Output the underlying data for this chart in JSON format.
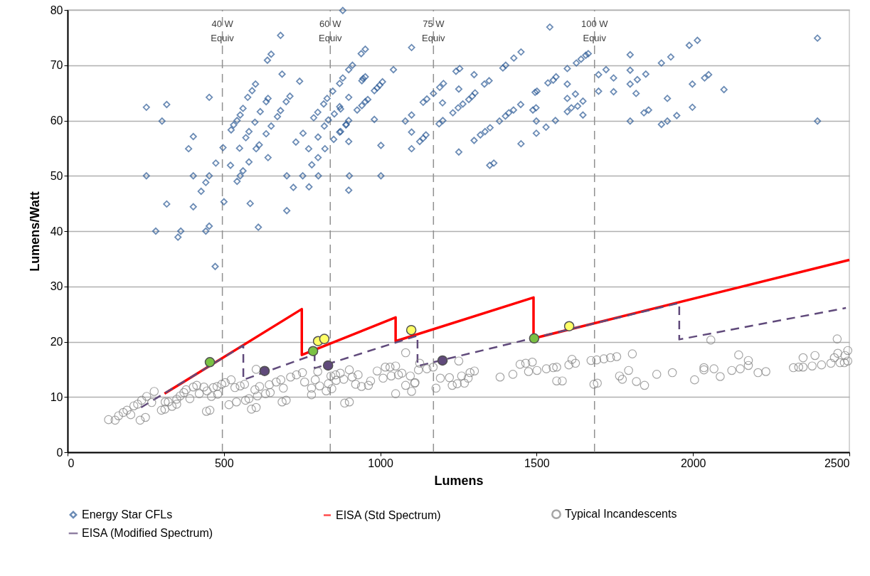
{
  "chart_data": {
    "type": "scatter",
    "xlabel": "Lumens",
    "ylabel": "Lumens/Watt",
    "xlim": [
      0,
      2500
    ],
    "xticks": [
      0,
      500,
      1000,
      1500,
      2000,
      2500
    ],
    "ylim": [
      0,
      80
    ],
    "yticks": [
      0,
      10,
      20,
      30,
      40,
      50,
      60,
      70,
      80
    ],
    "grid": "y",
    "legend": "bottom",
    "ref_lines": [
      {
        "axis": "x",
        "value": 495,
        "label": "40 W Equiv",
        "color": "#909090",
        "line_style": "dashed"
      },
      {
        "axis": "x",
        "value": 840,
        "label": "60 W Equiv",
        "color": "#909090",
        "line_style": "dashed"
      },
      {
        "axis": "x",
        "value": 1170,
        "label": "75 W Equiv",
        "color": "#909090",
        "line_style": "dashed"
      },
      {
        "axis": "x",
        "value": 1685,
        "label": "100 W Equiv",
        "color": "#909090",
        "line_style": "dashed"
      }
    ],
    "series": [
      {
        "name": "Energy Star CFLs",
        "marker": "diamond",
        "color": "#2e5c97",
        "x": [
          252,
          317,
          302,
          252,
          402,
          387,
          317,
          402,
          282,
          353,
          362,
          442,
          453,
          472,
          427,
          442,
          453,
          402,
          453,
          474,
          497,
          500,
          523,
          531,
          542,
          552,
          561,
          521,
          550,
          570,
          580,
          599,
          616,
          552,
          561,
          580,
          603,
          613,
          635,
          651,
          671,
          681,
          542,
          584,
          610,
          576,
          590,
          601,
          635,
          641,
          641,
          686,
          681,
          639,
          651,
          711,
          699,
          742,
          701,
          722,
          701,
          730,
          753,
          752,
          772,
          802,
          781,
          801,
          801,
          771,
          823,
          787,
          800,
          819,
          830,
          848,
          821,
          834,
          853,
          870,
          851,
          870,
          899,
          880,
          870,
          899,
          891,
          899,
          901,
          899,
          880,
          899,
          890,
          873,
          873,
          911,
          941,
          945,
          952,
          939,
          952,
          926,
          941,
          952,
          960,
          981,
          990,
          998,
          1007,
          981,
          1002,
          1002,
          1042,
          1100,
          1080,
          1100,
          1100,
          1100,
          1126,
          1137,
          1146,
          1137,
          1149,
          1170,
          1188,
          1200,
          1190,
          1202,
          1199,
          1232,
          1249,
          1264,
          1283,
          1294,
          1303,
          1251,
          1251,
          1242,
          1254,
          1300,
          1333,
          1348,
          1300,
          1320,
          1335,
          1351,
          1381,
          1400,
          1411,
          1426,
          1449,
          1350,
          1363,
          1392,
          1401,
          1427,
          1450,
          1450,
          1488,
          1498,
          1495,
          1501,
          1499,
          1499,
          1530,
          1560,
          1536,
          1553,
          1562,
          1542,
          1598,
          1598,
          1598,
          1598,
          1624,
          1611,
          1631,
          1648,
          1648,
          1627,
          1642,
          1657,
          1665,
          1698,
          1698,
          1722,
          1746,
          1746,
          1799,
          1799,
          1799,
          1818,
          1799,
          1822,
          1849,
          1843,
          1858,
          1899,
          1929,
          1918,
          1899,
          1918,
          1948,
          1988,
          2014,
          1998,
          1998,
          2037,
          2050,
          2099,
          2398,
          2398
        ],
        "values": [
          62.4,
          62.9,
          59.9,
          50.0,
          57.1,
          54.9,
          44.9,
          44.4,
          40.0,
          38.9,
          40.0,
          40.0,
          40.9,
          33.6,
          47.2,
          48.8,
          50.0,
          50.0,
          64.2,
          52.3,
          55.1,
          45.3,
          58.3,
          59.2,
          60.0,
          61.0,
          62.2,
          51.9,
          55.0,
          56.9,
          58.0,
          59.7,
          61.6,
          50.0,
          50.9,
          52.5,
          54.9,
          55.6,
          57.6,
          59.0,
          60.7,
          61.8,
          49.0,
          45.0,
          40.7,
          64.2,
          65.4,
          66.6,
          63.4,
          64.0,
          53.3,
          68.4,
          75.4,
          70.9,
          72.0,
          64.4,
          63.4,
          67.1,
          50.0,
          47.9,
          43.7,
          56.1,
          57.7,
          50.0,
          48.0,
          50.0,
          52.0,
          53.3,
          57.0,
          54.9,
          54.9,
          60.5,
          61.5,
          63.0,
          64.0,
          65.3,
          59.0,
          60.1,
          61.2,
          62.5,
          56.6,
          57.9,
          69.2,
          67.7,
          66.7,
          64.2,
          59.3,
          56.2,
          50.0,
          47.4,
          79.9,
          60.0,
          59.2,
          62.1,
          58.0,
          70.0,
          67.2,
          67.6,
          67.9,
          72.1,
          72.9,
          61.9,
          62.7,
          63.4,
          63.8,
          65.4,
          65.9,
          66.4,
          67.0,
          60.2,
          55.5,
          50.0,
          69.2,
          73.2,
          59.9,
          61.0,
          57.9,
          54.9,
          56.2,
          56.8,
          57.4,
          63.3,
          63.9,
          64.9,
          59.4,
          60.0,
          66.0,
          66.7,
          63.2,
          61.4,
          62.3,
          63.0,
          63.8,
          64.4,
          65.0,
          65.7,
          54.3,
          68.9,
          69.4,
          68.3,
          66.6,
          67.2,
          56.4,
          57.4,
          58.0,
          58.7,
          59.9,
          60.8,
          61.4,
          61.9,
          62.9,
          51.9,
          52.3,
          69.5,
          70.0,
          71.3,
          72.4,
          55.8,
          61.9,
          62.3,
          65.1,
          65.3,
          59.9,
          57.7,
          58.8,
          60.0,
          66.8,
          67.3,
          67.9,
          76.9,
          69.4,
          66.6,
          64.0,
          61.6,
          64.8,
          62.3,
          62.6,
          63.5,
          61.0,
          70.4,
          71.1,
          71.8,
          72.1,
          68.3,
          65.3,
          69.2,
          67.7,
          65.2,
          71.9,
          69.1,
          66.6,
          64.9,
          59.9,
          67.4,
          68.4,
          61.4,
          61.9,
          70.4,
          71.5,
          64.0,
          59.3,
          59.9,
          60.9,
          73.6,
          74.5,
          66.6,
          62.4,
          67.7,
          68.3,
          65.6,
          74.9,
          59.9
        ]
      },
      {
        "marker": "circle",
        "color": "#ffff66",
        "x": [
          801,
          821,
          1099,
          1604
        ],
        "values": [
          20.1,
          20.5,
          22.1,
          22.8
        ]
      },
      {
        "marker": "circle",
        "color": "#7ac143",
        "x": [
          455,
          785,
          1492
        ],
        "values": [
          16.3,
          18.3,
          20.6
        ]
      },
      {
        "name": "EISA (Std Spectrum)",
        "type": "line",
        "marker": "none",
        "line_style": "solid",
        "color": "#ff0000",
        "x": [
          310,
          749,
          749,
          1049,
          1049,
          1490,
          1490,
          2500
        ],
        "values": [
          10.6,
          25.9,
          17.6,
          24.4,
          20.1,
          28.0,
          20.6,
          34.8
        ]
      },
      {
        "name": "Typical Incandescents",
        "marker": "circle",
        "color": "#808080",
        "x": [
          131,
          152,
          163,
          178,
          190,
          202,
          212,
          224,
          237,
          253,
          277,
          232,
          249,
          269,
          300,
          311,
          312,
          322,
          334,
          349,
          349,
          360,
          372,
          379,
          391,
          402,
          413,
          421,
          436,
          446,
          444,
          455,
          460,
          466,
          478,
          493,
          504,
          523,
          480,
          516,
          540,
          535,
          552,
          566,
          569,
          580,
          588,
          603,
          599,
          614,
          603,
          607,
          633,
          648,
          645,
          667,
          682,
          690,
          686,
          699,
          713,
          732,
          751,
          758,
          780,
          780,
          792,
          800,
          806,
          827,
          834,
          845,
          842,
          857,
          859,
          872,
          883,
          886,
          901,
          901,
          910,
          921,
          929,
          940,
          962,
          969,
          990,
          1009,
          1016,
          1031,
          1035,
          1049,
          1049,
          1058,
          1069,
          1081,
          1081,
          1100,
          1096,
          1111,
          1122,
          1126,
          1110,
          1149,
          1169,
          1178,
          1192,
          1221,
          1230,
          1246,
          1269,
          1260,
          1281,
          1287,
          1301,
          1251,
          1383,
          1424,
          1447,
          1465,
          1474,
          1486,
          1501,
          1531,
          1553,
          1564,
          1564,
          1582,
          1603,
          1613,
          1624,
          1674,
          1692,
          1715,
          1736,
          1756,
          1683,
          1694,
          1806,
          1765,
          1774,
          1794,
          1819,
          1845,
          1884,
          1934,
          2005,
          2035,
          2035,
          2057,
          2067,
          2087,
          2124,
          2146,
          2151,
          2177,
          2177,
          2208,
          2233,
          2321,
          2338,
          2352,
          2352,
          2381,
          2390,
          2411,
          2441,
          2452,
          2463,
          2461,
          2470,
          2486,
          2484,
          2495,
          2495
        ],
        "values": [
          5.9,
          5.8,
          6.6,
          7.2,
          7.6,
          6.8,
          8.4,
          8.7,
          9.4,
          10.1,
          11.0,
          5.8,
          6.3,
          9.0,
          7.6,
          7.8,
          9.1,
          9.1,
          8.3,
          9.6,
          8.7,
          10.2,
          10.8,
          11.3,
          9.7,
          11.8,
          12.1,
          10.6,
          11.8,
          11.1,
          7.4,
          7.6,
          10.1,
          11.7,
          11.9,
          12.3,
          12.6,
          13.1,
          10.5,
          8.6,
          9.1,
          11.7,
          12.0,
          12.3,
          9.4,
          9.7,
          7.8,
          8.1,
          11.3,
          11.9,
          15.0,
          10.2,
          10.6,
          10.8,
          12.2,
          12.7,
          13.1,
          11.6,
          9.1,
          9.4,
          13.6,
          14.0,
          14.4,
          12.7,
          11.6,
          10.4,
          13.1,
          14.6,
          12.0,
          11.1,
          12.4,
          11.5,
          13.8,
          14.0,
          13.0,
          14.3,
          13.2,
          8.9,
          9.1,
          14.9,
          13.6,
          12.3,
          14.0,
          11.9,
          12.1,
          12.9,
          14.7,
          13.4,
          15.4,
          15.4,
          13.8,
          15.6,
          10.6,
          14.0,
          14.3,
          18.0,
          12.1,
          11.0,
          13.8,
          12.6,
          14.9,
          16.1,
          12.5,
          15.1,
          15.4,
          11.6,
          13.4,
          13.5,
          12.1,
          12.4,
          12.5,
          13.8,
          13.4,
          14.4,
          14.7,
          16.5,
          13.6,
          14.1,
          15.9,
          16.1,
          14.6,
          16.3,
          14.8,
          15.1,
          15.3,
          15.4,
          12.9,
          12.9,
          15.8,
          16.8,
          16.1,
          16.6,
          16.7,
          16.9,
          17.1,
          17.3,
          12.3,
          12.5,
          17.8,
          13.8,
          13.2,
          14.8,
          12.8,
          12.1,
          14.1,
          14.4,
          13.1,
          15.3,
          14.9,
          20.3,
          15.1,
          13.7,
          14.8,
          17.6,
          15.1,
          16.6,
          15.7,
          14.4,
          14.6,
          15.3,
          15.4,
          15.4,
          17.1,
          15.6,
          17.5,
          15.8,
          16.1,
          17.1,
          17.9,
          20.5,
          16.2,
          17.5,
          16.2,
          18.4,
          16.5
        ]
      },
      {
        "marker": "circle",
        "color": "#604a7b",
        "x": [
          630,
          833,
          1199
        ],
        "values": [
          14.7,
          15.7,
          16.6
        ]
      },
      {
        "name": "EISA (Modified Spectrum)",
        "type": "line",
        "marker": "none",
        "line_style": "dashed",
        "color": "#604a7b",
        "x": [
          235,
          562,
          562,
          790,
          790,
          1119,
          1119,
          1956,
          1956,
          2489
        ],
        "values": [
          8.1,
          19.3,
          13.1,
          17.7,
          15.2,
          21.1,
          15.6,
          27.0,
          20.4,
          26.1
        ]
      }
    ]
  }
}
